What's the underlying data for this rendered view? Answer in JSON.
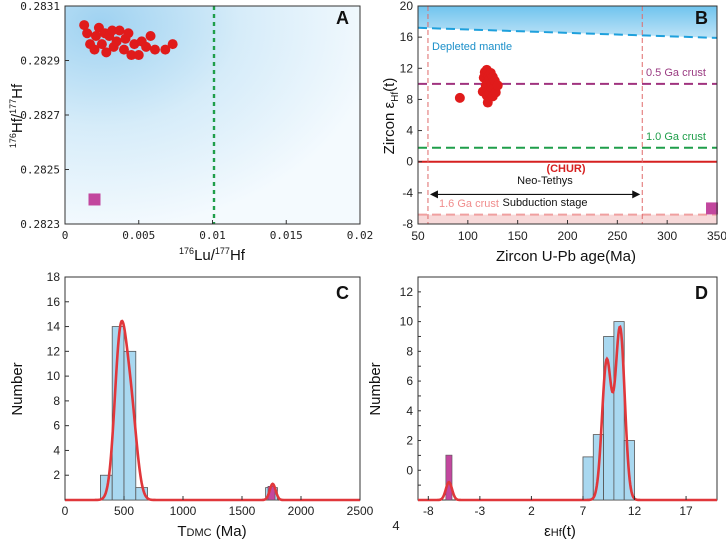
{
  "page_label": "4",
  "chart_data": [
    {
      "panel": "A",
      "type": "scatter",
      "xlabel_prefix": "176",
      "xlabel_mid": "Lu/",
      "xlabel_sup2": "177",
      "xlabel_end": "Hf",
      "ylabel_sup1": "176",
      "ylabel_mid": "Hf/",
      "ylabel_sup2": "177",
      "ylabel_end": "Hf",
      "xlim": [
        0,
        0.02
      ],
      "ylim": [
        0.2823,
        0.2831
      ],
      "xticks": [
        {
          "v": 0,
          "label": "0"
        },
        {
          "v": 0.005,
          "label": "0.005"
        },
        {
          "v": 0.01,
          "label": "0.01"
        },
        {
          "v": 0.015,
          "label": "0.015"
        },
        {
          "v": 0.02,
          "label": "0.02"
        }
      ],
      "yticks": [
        {
          "v": 0.2823,
          "label": "0.2823"
        },
        {
          "v": 0.2825,
          "label": "0.2825"
        },
        {
          "v": 0.2827,
          "label": "0.2827"
        },
        {
          "v": 0.2829,
          "label": "0.2829"
        },
        {
          "v": 0.2831,
          "label": "0.2831"
        }
      ],
      "vline_x": 0.01,
      "red_points": [
        [
          0.0013,
          0.28303
        ],
        [
          0.0015,
          0.283
        ],
        [
          0.0017,
          0.28296
        ],
        [
          0.002,
          0.28294
        ],
        [
          0.0021,
          0.28299
        ],
        [
          0.0023,
          0.28302
        ],
        [
          0.0025,
          0.28296
        ],
        [
          0.0027,
          0.283
        ],
        [
          0.0028,
          0.28293
        ],
        [
          0.003,
          0.28299
        ],
        [
          0.0032,
          0.28301
        ],
        [
          0.0033,
          0.28295
        ],
        [
          0.0035,
          0.28297
        ],
        [
          0.0037,
          0.28301
        ],
        [
          0.004,
          0.28294
        ],
        [
          0.0041,
          0.28298
        ],
        [
          0.0043,
          0.283
        ],
        [
          0.0045,
          0.28292
        ],
        [
          0.0047,
          0.28296
        ],
        [
          0.005,
          0.28292
        ],
        [
          0.0052,
          0.28297
        ],
        [
          0.0055,
          0.28295
        ],
        [
          0.0058,
          0.28299
        ],
        [
          0.0061,
          0.28294
        ],
        [
          0.0068,
          0.28294
        ],
        [
          0.0073,
          0.28296
        ]
      ],
      "magenta_points": [
        [
          0.002,
          0.28239
        ]
      ],
      "colors": {
        "red": "#e01b1b",
        "magenta": "#c2479e",
        "line": "#1f9e4a",
        "bg_dark": "#a6d6f2",
        "bg_light": "#eef7fd"
      }
    },
    {
      "panel": "B",
      "type": "scatter",
      "xlabel": "Zircon U-Pb age(Ma)",
      "ylabel_main": "Zircon ε",
      "ylabel_sub": "Hf",
      "ylabel_end": "(t)",
      "xlim": [
        50,
        350
      ],
      "ylim": [
        -8,
        20
      ],
      "xticks": [
        50,
        100,
        150,
        200,
        250,
        300,
        350
      ],
      "yticks": [
        -8,
        -4,
        0,
        4,
        8,
        12,
        16,
        20
      ],
      "red_points": [
        [
          92,
          8.2
        ],
        [
          115,
          9.0
        ],
        [
          116,
          10.8
        ],
        [
          117,
          11.5
        ],
        [
          118,
          9.8
        ],
        [
          119,
          11.8
        ],
        [
          119,
          8.5
        ],
        [
          120,
          10.2
        ],
        [
          120,
          7.6
        ],
        [
          121,
          11.0
        ],
        [
          121,
          9.2
        ],
        [
          122,
          10.6
        ],
        [
          122,
          8.8
        ],
        [
          123,
          11.4
        ],
        [
          123,
          9.6
        ],
        [
          124,
          10.0
        ],
        [
          125,
          8.4
        ],
        [
          125,
          10.9
        ],
        [
          126,
          9.4
        ],
        [
          127,
          10.4
        ],
        [
          128,
          8.9
        ],
        [
          130,
          9.8
        ]
      ],
      "magenta_points": [
        [
          345,
          -6.0
        ]
      ],
      "lines": [
        {
          "name": "Depleted mantle",
          "y0": 17.2,
          "y1": 15.9,
          "color": "#1ea0dc"
        },
        {
          "name": "0.5 Ga crust",
          "y0": 10.0,
          "y1": 10.0,
          "color": "#a0337f"
        },
        {
          "name": "1.0 Ga crust",
          "y0": 1.8,
          "y1": 1.8,
          "color": "#1f9e4a"
        },
        {
          "name": "(CHUR)",
          "y0": 0,
          "y1": 0,
          "color": "#d62020"
        },
        {
          "name": "1.6 Ga crust",
          "y0": -6.8,
          "y1": -6.8,
          "color": "#f0a0a0"
        }
      ],
      "vlines": [
        60,
        275
      ],
      "arrow": {
        "x0": 60,
        "x1": 275,
        "y": -4.2,
        "label1": "Neo-Tethys",
        "label2": "Subduction stage"
      }
    },
    {
      "panel": "C",
      "type": "histogram",
      "xlabel_main": "T",
      "xlabel_sub": "DMC",
      "xlabel_end": " (Ma)",
      "ylabel": "Number",
      "xlim": [
        0,
        2500
      ],
      "ylim": [
        0,
        18
      ],
      "xticks": [
        0,
        500,
        1000,
        1500,
        2000,
        2500
      ],
      "yticks": [
        2,
        4,
        6,
        8,
        10,
        12,
        14,
        16,
        18
      ],
      "bin_width": 100,
      "bins": [
        [
          350,
          2
        ],
        [
          450,
          14
        ],
        [
          550,
          12
        ],
        [
          650,
          1
        ],
        [
          1750,
          1
        ]
      ],
      "highlight_bin": 1750,
      "kde": [
        {
          "mu": 470,
          "sigma": 50,
          "amp": 12.8
        },
        {
          "mu": 560,
          "sigma": 50,
          "amp": 6.8
        },
        {
          "mu": 1760,
          "sigma": 25,
          "amp": 1.3
        }
      ]
    },
    {
      "panel": "D",
      "type": "histogram",
      "xlabel_main": "ε",
      "xlabel_sub": "Hf",
      "xlabel_end": "(t)",
      "ylabel": "Number",
      "xlim": [
        -9,
        20
      ],
      "ylim": [
        -2,
        13
      ],
      "xticks": [
        -8,
        -3,
        2,
        7,
        12,
        17
      ],
      "ytick_values": [
        -1,
        0,
        1,
        2,
        3,
        4,
        5,
        6,
        7,
        8,
        9,
        10,
        11,
        12
      ],
      "ytick_labels": [
        "",
        "0",
        "2",
        "4",
        "6",
        "8",
        "10",
        "12"
      ],
      "bin_width": 1,
      "bins": [
        [
          7.5,
          0.9
        ],
        [
          8.5,
          2.4
        ],
        [
          9.5,
          9
        ],
        [
          10.5,
          10
        ],
        [
          11.5,
          2
        ]
      ],
      "bins_min": -2,
      "highlight_bin": -6,
      "kde": [
        {
          "mu": 9.3,
          "sigma": 0.45,
          "amp": 9.3
        },
        {
          "mu": 10.6,
          "sigma": 0.45,
          "amp": 11.5
        },
        {
          "mu": -6,
          "sigma": 0.3,
          "amp": 1.2
        }
      ]
    }
  ],
  "colors": {
    "red": "#e01b1b",
    "magenta": "#c2479e",
    "bar": "#a9d8f0",
    "kde": "#e0373b"
  }
}
